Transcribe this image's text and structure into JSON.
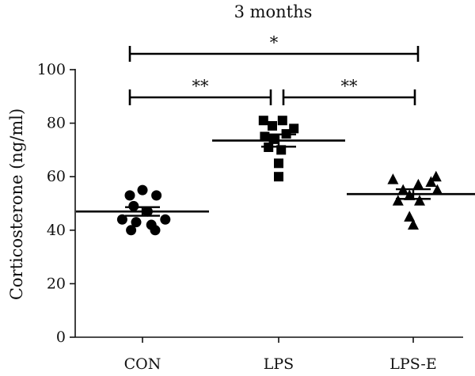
{
  "chart_data": {
    "type": "scatter",
    "title": "3 months",
    "ylabel": "Corticosterone (ng/ml)",
    "xlabel": "",
    "ylim": [
      0,
      100
    ],
    "yticks": [
      0,
      20,
      40,
      60,
      80,
      100
    ],
    "grid": false,
    "legend": "none",
    "categories": [
      "CON",
      "LPS",
      "LPS-E"
    ],
    "series": [
      {
        "category": "CON",
        "marker": "circle",
        "mean": 47,
        "sem": 1.6,
        "points": [
          {
            "offset": 0.0,
            "y": 55
          },
          {
            "offset": -0.2,
            "y": 53
          },
          {
            "offset": 0.22,
            "y": 53
          },
          {
            "offset": -0.14,
            "y": 49
          },
          {
            "offset": 0.08,
            "y": 47
          },
          {
            "offset": -0.32,
            "y": 44
          },
          {
            "offset": 0.36,
            "y": 44
          },
          {
            "offset": -0.1,
            "y": 43
          },
          {
            "offset": 0.14,
            "y": 42
          },
          {
            "offset": -0.18,
            "y": 40
          },
          {
            "offset": 0.2,
            "y": 40
          }
        ]
      },
      {
        "category": "LPS",
        "marker": "square",
        "mean": 73.5,
        "sem": 2.3,
        "points": [
          {
            "offset": -0.24,
            "y": 81
          },
          {
            "offset": 0.06,
            "y": 81
          },
          {
            "offset": -0.1,
            "y": 79
          },
          {
            "offset": 0.24,
            "y": 78
          },
          {
            "offset": 0.12,
            "y": 76
          },
          {
            "offset": -0.22,
            "y": 75
          },
          {
            "offset": -0.08,
            "y": 74
          },
          {
            "offset": -0.16,
            "y": 71
          },
          {
            "offset": 0.04,
            "y": 70
          },
          {
            "offset": 0.0,
            "y": 65
          },
          {
            "offset": 0.0,
            "y": 60
          }
        ]
      },
      {
        "category": "LPS-E",
        "marker": "triangle",
        "mean": 53.5,
        "sem": 1.8,
        "points": [
          {
            "offset": -0.32,
            "y": 59
          },
          {
            "offset": 0.36,
            "y": 60
          },
          {
            "offset": 0.28,
            "y": 58
          },
          {
            "offset": 0.08,
            "y": 57
          },
          {
            "offset": -0.16,
            "y": 55
          },
          {
            "offset": 0.38,
            "y": 55
          },
          {
            "offset": -0.06,
            "y": 53
          },
          {
            "offset": -0.24,
            "y": 51
          },
          {
            "offset": 0.1,
            "y": 51
          },
          {
            "offset": -0.06,
            "y": 45
          },
          {
            "offset": 0.0,
            "y": 42
          }
        ]
      }
    ],
    "significance": [
      {
        "from": "CON",
        "to": "LPS-E",
        "label": "*",
        "level": 2
      },
      {
        "from": "CON",
        "to": "LPS",
        "label": "**",
        "level": 1
      },
      {
        "from": "LPS",
        "to": "LPS-E",
        "label": "**",
        "level": 1
      }
    ]
  }
}
